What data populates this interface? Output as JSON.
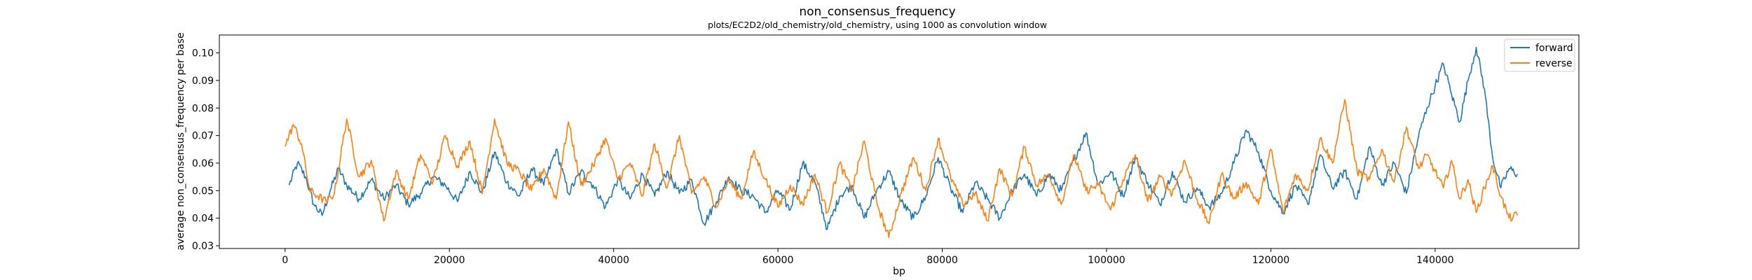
{
  "chart_data": {
    "type": "line",
    "title": "non_consensus_frequency",
    "subtitle": "plots/EC2D2/old_chemistry/old_chemistry, using 1000 as convolution window",
    "xlabel": "bp",
    "ylabel": "average non_consensus_frequency per base",
    "xlim": [
      -8000,
      157500
    ],
    "ylim": [
      0.029,
      0.1065
    ],
    "xticks": [
      0,
      20000,
      40000,
      60000,
      80000,
      100000,
      120000,
      140000
    ],
    "xtick_labels": [
      "0",
      "20000",
      "40000",
      "60000",
      "80000",
      "100000",
      "120000",
      "140000"
    ],
    "yticks": [
      0.03,
      0.04,
      0.05,
      0.06,
      0.07,
      0.08,
      0.09,
      0.1
    ],
    "ytick_labels": [
      "0.03",
      "0.04",
      "0.05",
      "0.06",
      "0.07",
      "0.08",
      "0.09",
      "0.10"
    ],
    "grid": false,
    "legend_position": "top-right",
    "series": [
      {
        "name": "forward",
        "color": "#1f77b4",
        "x": [
          500,
          1500,
          2500,
          3500,
          4500,
          5500,
          6500,
          7500,
          9000,
          10500,
          12000,
          13500,
          15000,
          16500,
          18000,
          19500,
          21000,
          22500,
          24000,
          25500,
          27000,
          28500,
          30000,
          31500,
          33000,
          34500,
          36000,
          37500,
          39000,
          40500,
          42000,
          43500,
          45000,
          46500,
          48000,
          49500,
          51000,
          52500,
          54000,
          55500,
          57000,
          58500,
          60000,
          61500,
          63000,
          64500,
          66000,
          67500,
          69000,
          70500,
          72000,
          73500,
          75000,
          76500,
          78000,
          79500,
          81000,
          82500,
          84000,
          85500,
          87000,
          88500,
          90000,
          91500,
          93000,
          94500,
          96000,
          97500,
          99000,
          100500,
          102000,
          103500,
          105000,
          106500,
          108000,
          109500,
          111000,
          112500,
          114000,
          115500,
          117000,
          118500,
          120000,
          121500,
          123000,
          124500,
          126000,
          127500,
          129000,
          130500,
          132000,
          133500,
          135000,
          136500,
          138000,
          139000,
          140000,
          141000,
          142000,
          143000,
          144000,
          145000,
          146000,
          147000,
          148000,
          149000,
          150000
        ],
        "values": [
          0.052,
          0.06,
          0.055,
          0.045,
          0.041,
          0.05,
          0.058,
          0.052,
          0.047,
          0.054,
          0.047,
          0.052,
          0.045,
          0.049,
          0.055,
          0.052,
          0.046,
          0.057,
          0.049,
          0.064,
          0.053,
          0.048,
          0.058,
          0.052,
          0.065,
          0.049,
          0.057,
          0.052,
          0.044,
          0.054,
          0.047,
          0.056,
          0.048,
          0.057,
          0.049,
          0.054,
          0.038,
          0.046,
          0.055,
          0.05,
          0.048,
          0.042,
          0.05,
          0.043,
          0.06,
          0.053,
          0.036,
          0.048,
          0.052,
          0.04,
          0.05,
          0.057,
          0.046,
          0.04,
          0.048,
          0.062,
          0.051,
          0.042,
          0.053,
          0.047,
          0.04,
          0.05,
          0.056,
          0.048,
          0.056,
          0.05,
          0.061,
          0.071,
          0.052,
          0.057,
          0.048,
          0.062,
          0.053,
          0.045,
          0.057,
          0.046,
          0.051,
          0.044,
          0.049,
          0.06,
          0.072,
          0.064,
          0.05,
          0.042,
          0.052,
          0.045,
          0.063,
          0.051,
          0.057,
          0.047,
          0.066,
          0.052,
          0.06,
          0.049,
          0.07,
          0.08,
          0.088,
          0.096,
          0.085,
          0.075,
          0.09,
          0.102,
          0.087,
          0.062,
          0.051,
          0.058,
          0.056
        ]
      },
      {
        "name": "reverse",
        "color": "#ff7f0e",
        "x": [
          0,
          1000,
          2000,
          3000,
          4000,
          5000,
          6000,
          7500,
          9000,
          10500,
          12000,
          13500,
          15000,
          16500,
          18000,
          19500,
          21000,
          22500,
          24000,
          25500,
          27000,
          28500,
          30000,
          31500,
          33000,
          34500,
          36000,
          37500,
          39000,
          40500,
          42000,
          43500,
          45000,
          46500,
          48000,
          49500,
          51000,
          52500,
          54000,
          55500,
          57000,
          58500,
          60000,
          61500,
          63000,
          64500,
          66000,
          67500,
          69000,
          70500,
          72000,
          73500,
          75000,
          76500,
          78000,
          79500,
          81000,
          82500,
          84000,
          85500,
          87000,
          88500,
          90000,
          91500,
          93000,
          94500,
          96000,
          97500,
          99000,
          100500,
          102000,
          103500,
          105000,
          106500,
          108000,
          109500,
          111000,
          112500,
          114000,
          115500,
          117000,
          118500,
          120000,
          121500,
          123000,
          124500,
          126000,
          127500,
          129000,
          130500,
          132000,
          133500,
          135000,
          136500,
          138000,
          139000,
          140000,
          141000,
          142000,
          143000,
          144000,
          145000,
          146000,
          147000,
          148000,
          149000,
          150000
        ],
        "values": [
          0.066,
          0.074,
          0.067,
          0.05,
          0.048,
          0.046,
          0.049,
          0.076,
          0.055,
          0.061,
          0.039,
          0.057,
          0.047,
          0.063,
          0.053,
          0.07,
          0.059,
          0.068,
          0.049,
          0.076,
          0.06,
          0.057,
          0.05,
          0.058,
          0.047,
          0.075,
          0.052,
          0.059,
          0.069,
          0.054,
          0.06,
          0.048,
          0.067,
          0.051,
          0.07,
          0.049,
          0.055,
          0.044,
          0.054,
          0.047,
          0.064,
          0.054,
          0.044,
          0.052,
          0.045,
          0.056,
          0.042,
          0.06,
          0.05,
          0.068,
          0.046,
          0.033,
          0.049,
          0.062,
          0.05,
          0.069,
          0.055,
          0.045,
          0.049,
          0.039,
          0.058,
          0.048,
          0.066,
          0.052,
          0.056,
          0.045,
          0.063,
          0.05,
          0.052,
          0.043,
          0.054,
          0.063,
          0.046,
          0.055,
          0.049,
          0.061,
          0.047,
          0.038,
          0.056,
          0.047,
          0.053,
          0.045,
          0.065,
          0.042,
          0.056,
          0.05,
          0.069,
          0.06,
          0.083,
          0.057,
          0.054,
          0.065,
          0.053,
          0.073,
          0.058,
          0.063,
          0.057,
          0.051,
          0.061,
          0.047,
          0.054,
          0.042,
          0.051,
          0.059,
          0.048,
          0.04,
          0.041
        ]
      }
    ]
  }
}
